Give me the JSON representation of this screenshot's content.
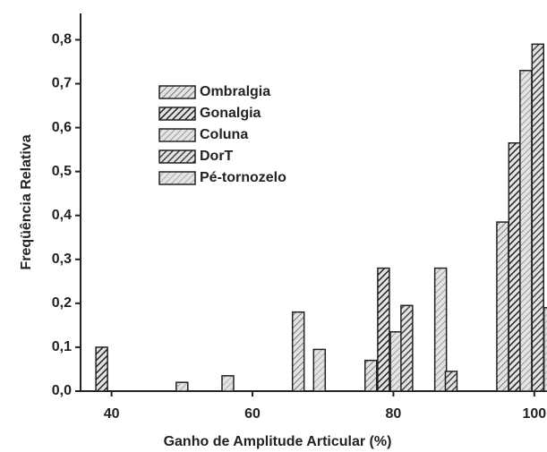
{
  "chart_data": {
    "type": "bar",
    "xlabel": "Ganho de Amplitude Articular (%)",
    "ylabel": "Freqüência Relativa",
    "xlim": [
      35.6,
      101.8
    ],
    "xticks": [
      40,
      60,
      80,
      100
    ],
    "ylim": [
      0,
      0.86
    ],
    "yticks": [
      {
        "value": 0,
        "label": "0,0"
      },
      {
        "value": 0.1,
        "label": "0,1"
      },
      {
        "value": 0.2,
        "label": "0,2"
      },
      {
        "value": 0.3,
        "label": "0,3"
      },
      {
        "value": 0.4,
        "label": "0,4"
      },
      {
        "value": 0.5,
        "label": "0,5"
      },
      {
        "value": 0.6,
        "label": "0,6"
      },
      {
        "value": 0.7,
        "label": "0,7"
      },
      {
        "value": 0.8,
        "label": "0,8"
      }
    ],
    "series": [
      {
        "name": "Ombralgia",
        "color": "#777777",
        "x": [
          66.5,
          76.8,
          95.5
        ],
        "values": [
          0.18,
          0.07,
          0.385
        ]
      },
      {
        "name": "Gonalgia",
        "color": "#222222",
        "x": [
          38.6,
          78.6,
          97.2
        ],
        "values": [
          0.1,
          0.28,
          0.565
        ]
      },
      {
        "name": "Coluna",
        "color": "#999999",
        "x": [
          80.4,
          86.7,
          98.8
        ],
        "values": [
          0.135,
          0.28,
          0.73
        ]
      },
      {
        "name": "DorT",
        "color": "#444444",
        "x": [
          81.9,
          88.2,
          100.5
        ],
        "values": [
          0.195,
          0.045,
          0.79
        ]
      },
      {
        "name": "Pé-tornozelo",
        "color": "#aaaaaa",
        "x": [
          50,
          56.5,
          69.5,
          102.2
        ],
        "values": [
          0.02,
          0.035,
          0.095,
          0.19
        ]
      }
    ]
  }
}
